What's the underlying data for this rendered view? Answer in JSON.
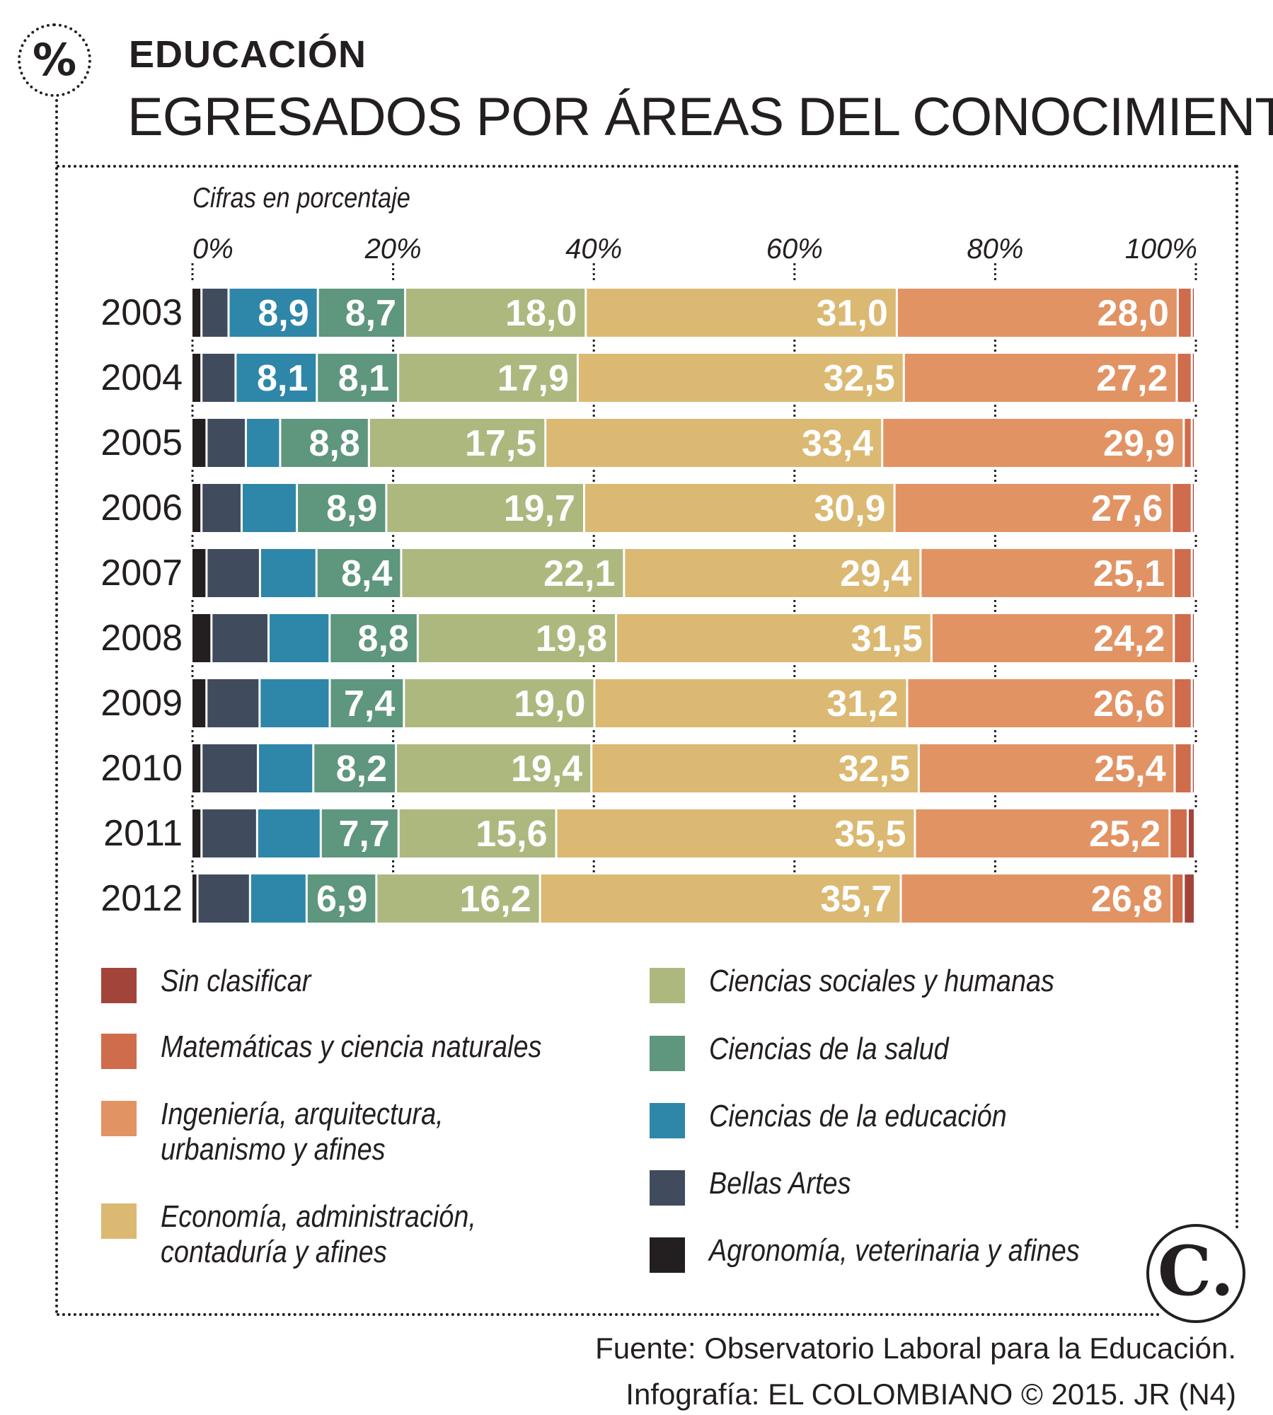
{
  "section": "EDUCACIÓN",
  "title": "EGRESADOS POR ÁREAS DEL CONOCIMIENTO",
  "badge": "%",
  "logo_mark": "C.",
  "footer": {
    "source": "Fuente: Observatorio Laboral para la Educación.",
    "credit": "Infografía: EL COLOMBIANO © 2015. JR (N4)"
  },
  "chart_data": {
    "type": "bar",
    "orientation": "horizontal",
    "stacked": true,
    "title": "EGRESADOS POR ÁREAS DEL CONOCIMIENTO",
    "subtitle": "Cifras en porcentaje",
    "xlim": [
      0,
      100
    ],
    "xticks": [
      "0%",
      "20%",
      "40%",
      "60%",
      "80%",
      "100%"
    ],
    "categories": [
      "2003",
      "2004",
      "2005",
      "2006",
      "2007",
      "2008",
      "2009",
      "2010",
      "2011",
      "2012"
    ],
    "series": [
      {
        "name": "Agronomía, veterinaria y afines",
        "color": "#231f20",
        "values": [
          1.0,
          1.0,
          1.5,
          1.0,
          1.5,
          2.0,
          1.5,
          1.0,
          1.0,
          0.6
        ],
        "labels": [
          "",
          "",
          "",
          "",
          "",
          "",
          "",
          "",
          "",
          ""
        ]
      },
      {
        "name": "Bellas Artes",
        "color": "#414b5e",
        "values": [
          2.7,
          3.4,
          3.9,
          4.0,
          5.3,
          5.7,
          5.3,
          5.6,
          5.5,
          5.2
        ],
        "labels": [
          "",
          "",
          "",
          "",
          "",
          "",
          "",
          "",
          "",
          ""
        ]
      },
      {
        "name": "Ciencias de la educación",
        "color": "#2e86a8",
        "values": [
          8.9,
          8.1,
          3.4,
          5.5,
          5.6,
          6.1,
          7.0,
          5.5,
          6.3,
          5.6
        ],
        "labels": [
          "8,9",
          "8,1",
          "",
          "",
          "",
          "",
          "",
          "",
          "",
          ""
        ]
      },
      {
        "name": "Ciencias de la salud",
        "color": "#5e967e",
        "values": [
          8.7,
          8.1,
          8.8,
          8.9,
          8.4,
          8.8,
          7.4,
          8.2,
          7.7,
          6.9
        ],
        "labels": [
          "8,7",
          "8,1",
          "8,8",
          "8,9",
          "8,4",
          "8,8",
          "7,4",
          "8,2",
          "7,7",
          "6,9"
        ]
      },
      {
        "name": "Ciencias sociales y humanas",
        "color": "#adb87f",
        "values": [
          18.0,
          17.9,
          17.5,
          19.7,
          22.1,
          19.8,
          19.0,
          19.4,
          15.6,
          16.2
        ],
        "labels": [
          "18,0",
          "17,9",
          "17,5",
          "19,7",
          "22,1",
          "19,8",
          "19,0",
          "19,4",
          "15,6",
          "16,2"
        ]
      },
      {
        "name": "Economía, administración, contaduría y afines",
        "color": "#dbb972",
        "values": [
          31.0,
          32.5,
          33.4,
          30.9,
          29.4,
          31.5,
          31.2,
          32.5,
          35.5,
          35.7
        ],
        "labels": [
          "31,0",
          "32,5",
          "33,4",
          "30,9",
          "29,4",
          "31,5",
          "31,2",
          "32,5",
          "35,5",
          "35,7"
        ]
      },
      {
        "name": "Ingeniería, arquitectura, urbanismo y afines",
        "color": "#e29364",
        "values": [
          28.0,
          27.2,
          29.9,
          27.6,
          25.1,
          24.2,
          26.6,
          25.4,
          25.2,
          26.8
        ],
        "labels": [
          "28,0",
          "27,2",
          "29,9",
          "27,6",
          "25,1",
          "24,2",
          "26,6",
          "25,4",
          "25,2",
          "26,8"
        ]
      },
      {
        "name": "Matemáticas y ciencia naturales",
        "color": "#cf6c4c",
        "values": [
          1.4,
          1.5,
          0.8,
          2.0,
          1.8,
          1.8,
          1.8,
          1.7,
          1.8,
          1.2
        ],
        "labels": [
          "",
          "",
          "",
          "",
          "",
          "",
          "",
          "",
          "",
          ""
        ]
      },
      {
        "name": "Sin clasificar",
        "color": "#a3443a",
        "values": [
          0.3,
          0.3,
          0.3,
          0.3,
          0.3,
          0.3,
          0.3,
          0.3,
          0.7,
          1.1
        ],
        "labels": [
          "",
          "",
          "",
          "",
          "",
          "",
          "",
          "",
          "",
          ""
        ]
      }
    ]
  },
  "legend": {
    "left": [
      {
        "lines": [
          "Sin clasificar"
        ],
        "color": "#a3443a"
      },
      {
        "lines": [
          "Matemáticas y ciencia naturales"
        ],
        "color": "#cf6c4c"
      },
      {
        "lines": [
          "Ingeniería, arquitectura,",
          "urbanismo y afines"
        ],
        "color": "#e29364"
      },
      {
        "lines": [
          "Economía, administración,",
          "contaduría y afines"
        ],
        "color": "#dbb972"
      }
    ],
    "right": [
      {
        "lines": [
          "Ciencias sociales y humanas"
        ],
        "color": "#adb87f"
      },
      {
        "lines": [
          "Ciencias de la salud"
        ],
        "color": "#5e967e"
      },
      {
        "lines": [
          "Ciencias de la educación"
        ],
        "color": "#2e86a8"
      },
      {
        "lines": [
          "Bellas Artes"
        ],
        "color": "#414b5e"
      },
      {
        "lines": [
          "Agronomía, veterinaria y afines"
        ],
        "color": "#231f20"
      }
    ]
  }
}
